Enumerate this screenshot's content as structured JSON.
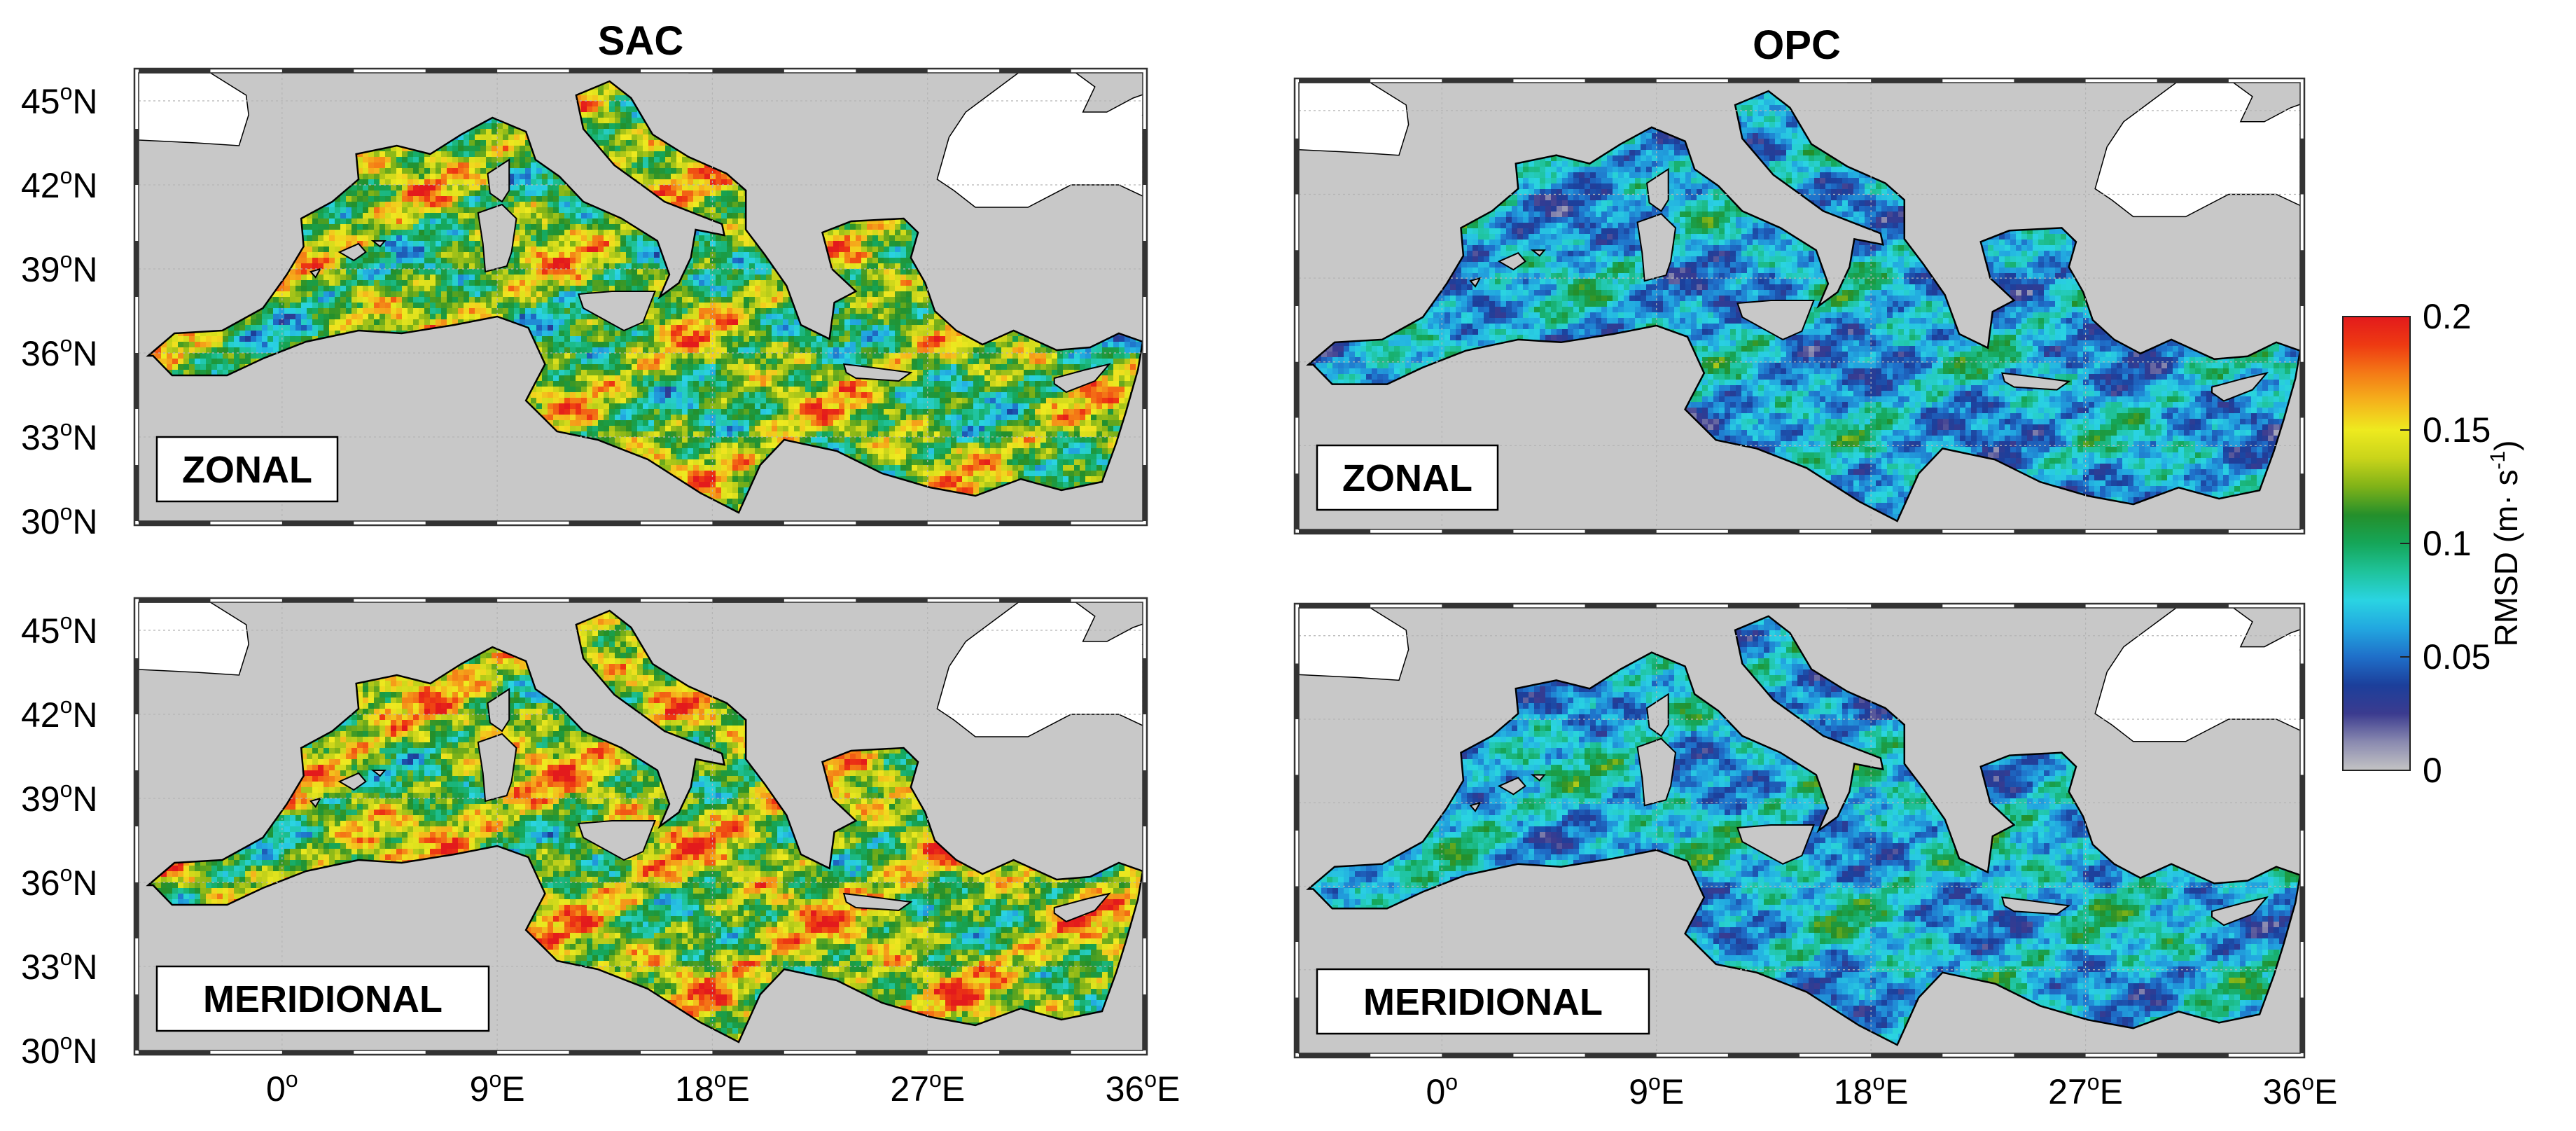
{
  "columns": [
    {
      "title": "SAC"
    },
    {
      "title": "OPC"
    }
  ],
  "panels": [
    {
      "column": "SAC",
      "component": "ZONAL",
      "label": "ZONAL",
      "show_lat_ticks": true,
      "show_lon_ticks": false
    },
    {
      "column": "OPC",
      "component": "ZONAL",
      "label": "ZONAL",
      "show_lat_ticks": false,
      "show_lon_ticks": false
    },
    {
      "column": "SAC",
      "component": "MERIDIONAL",
      "label": "MERIDIONAL",
      "show_lat_ticks": true,
      "show_lon_ticks": true
    },
    {
      "column": "OPC",
      "component": "MERIDIONAL",
      "label": "MERIDIONAL",
      "show_lat_ticks": false,
      "show_lon_ticks": true
    }
  ],
  "map": {
    "lon_range": [
      -6,
      36
    ],
    "lat_range": [
      30,
      46
    ],
    "lat_ticks": [
      {
        "value": 45,
        "deg": "45",
        "hemi": "N"
      },
      {
        "value": 42,
        "deg": "42",
        "hemi": "N"
      },
      {
        "value": 39,
        "deg": "39",
        "hemi": "N"
      },
      {
        "value": 36,
        "deg": "36",
        "hemi": "N"
      },
      {
        "value": 33,
        "deg": "33",
        "hemi": "N"
      },
      {
        "value": 30,
        "deg": "30",
        "hemi": "N"
      }
    ],
    "lon_ticks": [
      {
        "value": 0,
        "deg": "0",
        "hemi": ""
      },
      {
        "value": 9,
        "deg": "9",
        "hemi": "E"
      },
      {
        "value": 18,
        "deg": "18",
        "hemi": "E"
      },
      {
        "value": 27,
        "deg": "27",
        "hemi": "E"
      },
      {
        "value": 36,
        "deg": "36",
        "hemi": "E"
      }
    ],
    "colors": {
      "land": "#c8c8c8",
      "unmapped": "#ffffff",
      "coast": "#000000",
      "grid": "#b4b4b4"
    }
  },
  "colorbar": {
    "label": "RMSD (m·s⁻¹)",
    "label_base": "RMSD (m",
    "label_dot": "·",
    "label_unit": " s",
    "label_exp": "-1",
    "label_close": ")",
    "min": 0,
    "max": 0.2,
    "ticks": [
      {
        "value": 0,
        "text": "0"
      },
      {
        "value": 0.05,
        "text": "0.05"
      },
      {
        "value": 0.1,
        "text": "0.1"
      },
      {
        "value": 0.15,
        "text": "0.15"
      },
      {
        "value": 0.2,
        "text": "0.2"
      }
    ],
    "colormap": [
      "#c4c4c4",
      "#8a8ab0",
      "#3b3b8f",
      "#1c3f9b",
      "#1f6fc9",
      "#22a7e0",
      "#2ad4e2",
      "#1fc39b",
      "#15a659",
      "#248f2b",
      "#7fb218",
      "#c9d41a",
      "#eeea1f",
      "#f5b31c",
      "#f47a16",
      "#ee3a12",
      "#e31a1c"
    ]
  },
  "fields": {
    "SAC": {
      "ZONAL": {
        "mean": 0.12,
        "spread": 0.07,
        "seed": 11
      },
      "MERIDIONAL": {
        "mean": 0.13,
        "spread": 0.07,
        "seed": 23
      }
    },
    "OPC": {
      "ZONAL": {
        "mean": 0.065,
        "spread": 0.045,
        "seed": 37
      },
      "MERIDIONAL": {
        "mean": 0.07,
        "spread": 0.045,
        "seed": 51
      }
    }
  }
}
